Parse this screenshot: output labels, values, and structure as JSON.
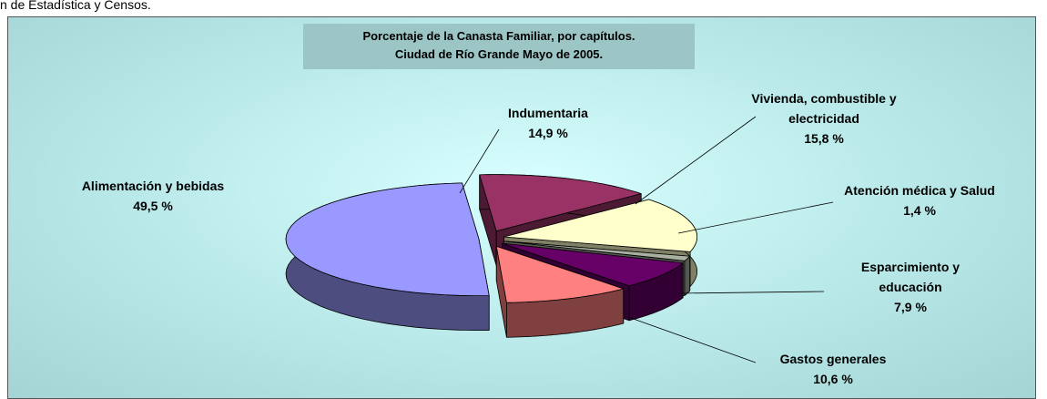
{
  "source_note": "n de Estadística y Censos.",
  "chart_data": {
    "type": "pie3d",
    "title": "Porcentaje de la Canasta Familiar, por capítulos.",
    "subtitle": "Ciudad de Río Grande Mayo de 2005.",
    "categories": [
      "Indumentaria",
      "Vivienda, combustible y electricidad",
      "Atención médica y Salud",
      "Esparcimiento y educación",
      "Gastos generales",
      "Alimentación y bebidas"
    ],
    "values": [
      14.9,
      15.8,
      1.4,
      7.9,
      10.6,
      49.5
    ],
    "value_labels": [
      "14,9 %",
      "15,8 %",
      "1,4 %",
      "7,9 %",
      "10,6 %",
      "49,5 %"
    ],
    "colors": [
      "#993366",
      "#ffffcc",
      "#a8b0a0",
      "#660066",
      "#ff8080",
      "#9999ff"
    ]
  }
}
